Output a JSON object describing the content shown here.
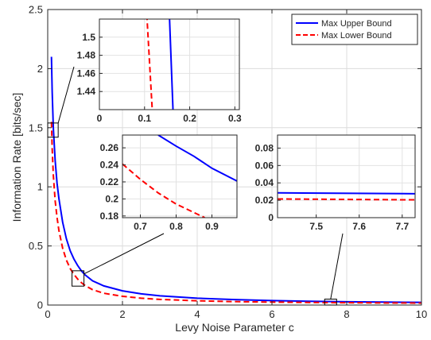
{
  "chart_data": [
    {
      "type": "line",
      "role": "main",
      "title": "",
      "xlabel": "Levy Noise Parameter c",
      "ylabel": "Information Rate [bits/sec]",
      "xlim": [
        0,
        10
      ],
      "ylim": [
        0,
        2.5
      ],
      "xticks": [
        0,
        2,
        4,
        6,
        8,
        10
      ],
      "yticks": [
        0,
        0.5,
        1,
        1.5,
        2,
        2.5
      ],
      "grid": true,
      "legend": "top-right",
      "series": [
        {
          "name": "Max Upper Bound",
          "color": "#0000ff",
          "style": "solid",
          "x": [
            0.1,
            0.12,
            0.15,
            0.2,
            0.25,
            0.3,
            0.4,
            0.5,
            0.6,
            0.7,
            0.8,
            0.9,
            1.0,
            1.2,
            1.5,
            2,
            2.5,
            3,
            4,
            5,
            6,
            7,
            8,
            9,
            10
          ],
          "y": [
            2.1,
            1.8,
            1.5,
            1.22,
            1.03,
            0.9,
            0.7,
            0.56,
            0.46,
            0.39,
            0.335,
            0.29,
            0.255,
            0.205,
            0.162,
            0.12,
            0.095,
            0.078,
            0.058,
            0.046,
            0.038,
            0.032,
            0.028,
            0.025,
            0.023
          ]
        },
        {
          "name": "Max Lower Bound",
          "color": "#ff0000",
          "style": "dashed",
          "x": [
            0.1,
            0.12,
            0.15,
            0.2,
            0.25,
            0.3,
            0.4,
            0.5,
            0.6,
            0.7,
            0.8,
            0.9,
            1.0,
            1.2,
            1.5,
            2,
            2.5,
            3,
            4,
            5,
            6,
            7,
            8,
            9,
            10
          ],
          "y": [
            1.55,
            1.32,
            1.1,
            0.88,
            0.74,
            0.63,
            0.48,
            0.38,
            0.31,
            0.26,
            0.22,
            0.19,
            0.165,
            0.13,
            0.1,
            0.074,
            0.058,
            0.048,
            0.036,
            0.029,
            0.025,
            0.022,
            0.02,
            0.018,
            0.017
          ]
        }
      ]
    },
    {
      "type": "line",
      "role": "inset",
      "xlim": [
        0,
        0.31
      ],
      "ylim": [
        1.42,
        1.52
      ],
      "xticks": [
        0,
        0.1,
        0.2,
        0.3
      ],
      "xticklabels": [
        "0",
        "0.1",
        "0.2",
        "0.3"
      ],
      "yticks": [
        1.44,
        1.46,
        1.48,
        1.5
      ],
      "yticklabels": [
        "1.44",
        "1.46",
        "1.48",
        "1.5"
      ],
      "zoom_region": {
        "x": [
          0.0,
          0.28
        ],
        "y": [
          1.42,
          1.54
        ]
      },
      "series": [
        {
          "name": "Max Upper Bound",
          "color": "#0000ff",
          "style": "solid",
          "x": [
            0.155,
            0.163
          ],
          "y": [
            1.525,
            1.42
          ]
        },
        {
          "name": "Max Lower Bound",
          "color": "#ff0000",
          "style": "dashed",
          "x": [
            0.105,
            0.117
          ],
          "y": [
            1.525,
            1.42
          ]
        }
      ]
    },
    {
      "type": "line",
      "role": "inset",
      "xlim": [
        0.65,
        0.97
      ],
      "ylim": [
        0.178,
        0.275
      ],
      "xticks": [
        0.7,
        0.8,
        0.9
      ],
      "xticklabels": [
        "0.7",
        "0.8",
        "0.9"
      ],
      "yticks": [
        0.18,
        0.2,
        0.22,
        0.24,
        0.26
      ],
      "yticklabels": [
        "0.18",
        "0.2",
        "0.22",
        "0.24",
        "0.26"
      ],
      "zoom_region": {
        "x": [
          0.65,
          0.97
        ],
        "y": [
          0.16,
          0.29
        ]
      },
      "series": [
        {
          "name": "Max Upper Bound",
          "color": "#0000ff",
          "style": "solid",
          "x": [
            0.75,
            0.8,
            0.85,
            0.9,
            0.97
          ],
          "y": [
            0.275,
            0.262,
            0.25,
            0.236,
            0.221
          ]
        },
        {
          "name": "Max Lower Bound",
          "color": "#ff0000",
          "style": "dashed",
          "x": [
            0.65,
            0.7,
            0.75,
            0.8,
            0.85,
            0.88
          ],
          "y": [
            0.241,
            0.223,
            0.207,
            0.194,
            0.184,
            0.178
          ]
        }
      ]
    },
    {
      "type": "line",
      "role": "inset",
      "xlim": [
        7.41,
        7.73
      ],
      "ylim": [
        0,
        0.095
      ],
      "xticks": [
        7.5,
        7.6,
        7.7
      ],
      "xticklabels": [
        "7.5",
        "7.6",
        "7.7"
      ],
      "yticks": [
        0,
        0.02,
        0.04,
        0.06,
        0.08
      ],
      "yticklabels": [
        "0",
        "0.02",
        "0.04",
        "0.06",
        "0.08"
      ],
      "zoom_region": {
        "x": [
          7.41,
          7.73
        ],
        "y": [
          0.0,
          0.05
        ]
      },
      "series": [
        {
          "name": "Max Upper Bound",
          "color": "#0000ff",
          "style": "solid",
          "x": [
            7.41,
            7.73
          ],
          "y": [
            0.0285,
            0.0275
          ]
        },
        {
          "name": "Max Lower Bound",
          "color": "#ff0000",
          "style": "dashed",
          "x": [
            7.41,
            7.73
          ],
          "y": [
            0.0215,
            0.0205
          ]
        }
      ]
    }
  ]
}
